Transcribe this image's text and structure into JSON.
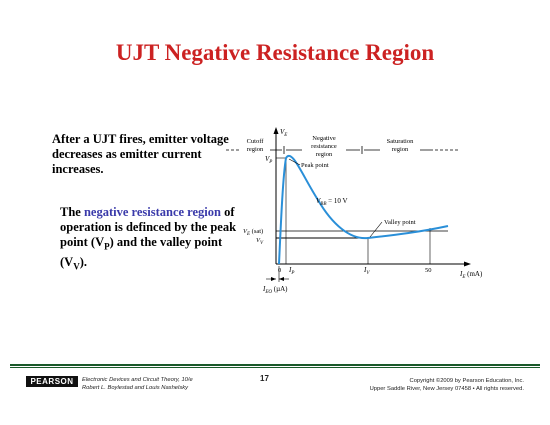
{
  "slide": {
    "title": "UJT Negative Resistance Region",
    "para1": "After a UJT fires, emitter voltage decreases as emitter current increases.",
    "para2_pre": "The ",
    "para2_highlight": "negative resistance region",
    "para2_mid": " of operation is definced by the peak point (V",
    "para2_sub1": "P",
    "para2_mid2": ") and the valley point (V",
    "para2_sub2": "V",
    "para2_end": ")."
  },
  "chart": {
    "y_axis_label": "V",
    "y_axis_sub": "E",
    "x_axis_label": "I",
    "x_axis_sub": "E",
    "x_axis_unit": " (mA)",
    "cutoff_line1": "Cutoff",
    "cutoff_line2": "region",
    "negres_line1": "Negative",
    "negres_line2": "resistance",
    "negres_line3": "region",
    "sat_line1": "Saturation",
    "sat_line2": "region",
    "vp_label": "V",
    "vp_sub": "P",
    "peak_point": "Peak point",
    "vbb_label": "V",
    "vbb_sub": "BB",
    "vbb_value": " = 10 V",
    "valley_point": "Valley point",
    "ve_sat_label": "V",
    "ve_sat_sub": "E",
    "ve_sat_suffix": " (sat)",
    "vv_label": "V",
    "vv_sub": "V",
    "tick_zero": "0",
    "ip_label": "I",
    "ip_sub": "P",
    "iv_label": "I",
    "iv_sub": "V",
    "tick_50": "50",
    "ieo_label": "I",
    "ieo_sub": "EO",
    "ieo_unit": " (µA)"
  },
  "footer": {
    "logo": "PEARSON",
    "book_line1": "Electronic Devices and Circuit Theory, 10/e",
    "book_line2": "Robert L. Boylestad and Louis Nashelsky",
    "page": "17",
    "copy_line1": "Copyright ©2009 by Pearson Education, Inc.",
    "copy_line2": "Upper Saddle River, New Jersey 07458 • All rights reserved."
  }
}
